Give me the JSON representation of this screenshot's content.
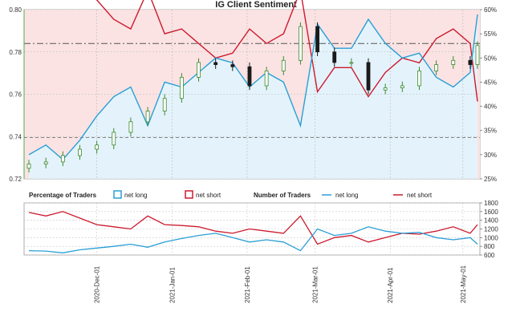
{
  "chart_data": {
    "title": "IG Client Sentiment",
    "type": "line",
    "colors": {
      "net_long": "#2a9fd6",
      "net_short": "#cc1a2e",
      "long_fill": "#e4f3fb",
      "short_fill": "#fbe3e3",
      "candle_up": "#3a8a2e",
      "candle_down": "#1a1a1a"
    },
    "price_axis": {
      "ticks": [
        "0.72",
        "0.74",
        "0.76",
        "0.78",
        "0.80"
      ],
      "ylim": [
        0.72,
        0.8
      ]
    },
    "pct_axis": {
      "ticks": [
        "25%",
        "30%",
        "35%",
        "40%",
        "45%",
        "50%",
        "55%",
        "60%"
      ],
      "ylim": [
        25,
        60
      ]
    },
    "reference_lines": {
      "price_dash_dot": 0.784,
      "price_dash": 0.7395
    },
    "x_ticks": [
      "2020-Dec-01",
      "2021-Jan-01",
      "2021-Feb-01",
      "2021-Mar-01",
      "2021-Apr-01",
      "2021-May-01"
    ],
    "legend_pct": {
      "title": "Percentage of Traders",
      "long": "net long",
      "short": "net short"
    },
    "legend_num": {
      "title": "Number of Traders",
      "long": "net long",
      "short": "net short"
    },
    "count_axis": {
      "ticks": [
        "600",
        "800",
        "1000",
        "1200",
        "1400",
        "1600",
        "1800"
      ],
      "ylim": [
        600,
        1800
      ]
    },
    "price_close": [
      {
        "date": "2020-11-03",
        "value": 0.727
      },
      {
        "date": "2020-11-10",
        "value": 0.728
      },
      {
        "date": "2020-11-17",
        "value": 0.731
      },
      {
        "date": "2020-11-24",
        "value": 0.734
      },
      {
        "date": "2020-12-01",
        "value": 0.736
      },
      {
        "date": "2020-12-08",
        "value": 0.742
      },
      {
        "date": "2020-12-15",
        "value": 0.747
      },
      {
        "date": "2020-12-22",
        "value": 0.752
      },
      {
        "date": "2020-12-29",
        "value": 0.758
      },
      {
        "date": "2021-01-05",
        "value": 0.768
      },
      {
        "date": "2021-01-12",
        "value": 0.775
      },
      {
        "date": "2021-01-19",
        "value": 0.774
      },
      {
        "date": "2021-01-26",
        "value": 0.773
      },
      {
        "date": "2021-02-02",
        "value": 0.764
      },
      {
        "date": "2021-02-09",
        "value": 0.771
      },
      {
        "date": "2021-02-16",
        "value": 0.776
      },
      {
        "date": "2021-02-23",
        "value": 0.792
      },
      {
        "date": "2021-03-02",
        "value": 0.78
      },
      {
        "date": "2021-03-09",
        "value": 0.775
      },
      {
        "date": "2021-03-16",
        "value": 0.775
      },
      {
        "date": "2021-03-23",
        "value": 0.762
      },
      {
        "date": "2021-03-30",
        "value": 0.763
      },
      {
        "date": "2021-04-06",
        "value": 0.764
      },
      {
        "date": "2021-04-13",
        "value": 0.771
      },
      {
        "date": "2021-04-20",
        "value": 0.774
      },
      {
        "date": "2021-04-27",
        "value": 0.776
      },
      {
        "date": "2021-05-04",
        "value": 0.774
      },
      {
        "date": "2021-05-07",
        "value": 0.783
      }
    ],
    "net_long_pct": [
      {
        "date": "2020-11-03",
        "value": 30
      },
      {
        "date": "2020-11-10",
        "value": 32
      },
      {
        "date": "2020-11-17",
        "value": 29
      },
      {
        "date": "2020-11-24",
        "value": 33
      },
      {
        "date": "2020-12-01",
        "value": 38
      },
      {
        "date": "2020-12-08",
        "value": 42
      },
      {
        "date": "2020-12-15",
        "value": 44
      },
      {
        "date": "2020-12-22",
        "value": 36
      },
      {
        "date": "2020-12-29",
        "value": 45
      },
      {
        "date": "2021-01-05",
        "value": 44
      },
      {
        "date": "2021-01-12",
        "value": 47
      },
      {
        "date": "2021-01-19",
        "value": 50
      },
      {
        "date": "2021-01-26",
        "value": 49
      },
      {
        "date": "2021-02-02",
        "value": 44
      },
      {
        "date": "2021-02-09",
        "value": 47
      },
      {
        "date": "2021-02-16",
        "value": 45
      },
      {
        "date": "2021-02-23",
        "value": 36
      },
      {
        "date": "2021-03-02",
        "value": 57
      },
      {
        "date": "2021-03-09",
        "value": 52
      },
      {
        "date": "2021-03-16",
        "value": 52
      },
      {
        "date": "2021-03-23",
        "value": 58
      },
      {
        "date": "2021-03-30",
        "value": 53
      },
      {
        "date": "2021-04-06",
        "value": 50
      },
      {
        "date": "2021-04-13",
        "value": 51
      },
      {
        "date": "2021-04-20",
        "value": 46
      },
      {
        "date": "2021-04-27",
        "value": 44
      },
      {
        "date": "2021-05-04",
        "value": 47
      },
      {
        "date": "2021-05-07",
        "value": 59
      }
    ],
    "net_long_count": [
      {
        "date": "2020-11-03",
        "value": 700
      },
      {
        "date": "2020-11-10",
        "value": 690
      },
      {
        "date": "2020-11-17",
        "value": 650
      },
      {
        "date": "2020-11-24",
        "value": 720
      },
      {
        "date": "2020-12-01",
        "value": 760
      },
      {
        "date": "2020-12-08",
        "value": 800
      },
      {
        "date": "2020-12-15",
        "value": 850
      },
      {
        "date": "2020-12-22",
        "value": 780
      },
      {
        "date": "2020-12-29",
        "value": 900
      },
      {
        "date": "2021-01-05",
        "value": 980
      },
      {
        "date": "2021-01-12",
        "value": 1050
      },
      {
        "date": "2021-01-19",
        "value": 1100
      },
      {
        "date": "2021-01-26",
        "value": 1000
      },
      {
        "date": "2021-02-02",
        "value": 900
      },
      {
        "date": "2021-02-09",
        "value": 950
      },
      {
        "date": "2021-02-16",
        "value": 900
      },
      {
        "date": "2021-02-23",
        "value": 700
      },
      {
        "date": "2021-03-02",
        "value": 1200
      },
      {
        "date": "2021-03-09",
        "value": 1050
      },
      {
        "date": "2021-03-16",
        "value": 1100
      },
      {
        "date": "2021-03-23",
        "value": 1250
      },
      {
        "date": "2021-03-30",
        "value": 1150
      },
      {
        "date": "2021-04-06",
        "value": 1100
      },
      {
        "date": "2021-04-13",
        "value": 1120
      },
      {
        "date": "2021-04-20",
        "value": 1000
      },
      {
        "date": "2021-04-27",
        "value": 950
      },
      {
        "date": "2021-05-04",
        "value": 1000
      },
      {
        "date": "2021-05-07",
        "value": 850
      }
    ],
    "net_short_count": [
      {
        "date": "2020-11-03",
        "value": 1580
      },
      {
        "date": "2020-11-10",
        "value": 1500
      },
      {
        "date": "2020-11-17",
        "value": 1600
      },
      {
        "date": "2020-11-24",
        "value": 1450
      },
      {
        "date": "2020-12-01",
        "value": 1300
      },
      {
        "date": "2020-12-08",
        "value": 1250
      },
      {
        "date": "2020-12-15",
        "value": 1200
      },
      {
        "date": "2020-12-22",
        "value": 1500
      },
      {
        "date": "2020-12-29",
        "value": 1300
      },
      {
        "date": "2021-01-05",
        "value": 1280
      },
      {
        "date": "2021-01-12",
        "value": 1250
      },
      {
        "date": "2021-01-19",
        "value": 1150
      },
      {
        "date": "2021-01-26",
        "value": 1100
      },
      {
        "date": "2021-02-02",
        "value": 1200
      },
      {
        "date": "2021-02-09",
        "value": 1150
      },
      {
        "date": "2021-02-16",
        "value": 1100
      },
      {
        "date": "2021-02-23",
        "value": 1500
      },
      {
        "date": "2021-03-02",
        "value": 850
      },
      {
        "date": "2021-03-09",
        "value": 1000
      },
      {
        "date": "2021-03-16",
        "value": 1050
      },
      {
        "date": "2021-03-23",
        "value": 900
      },
      {
        "date": "2021-03-30",
        "value": 1000
      },
      {
        "date": "2021-04-06",
        "value": 1100
      },
      {
        "date": "2021-04-13",
        "value": 1080
      },
      {
        "date": "2021-04-20",
        "value": 1150
      },
      {
        "date": "2021-04-27",
        "value": 1250
      },
      {
        "date": "2021-05-04",
        "value": 1100
      },
      {
        "date": "2021-05-07",
        "value": 1300
      }
    ]
  }
}
